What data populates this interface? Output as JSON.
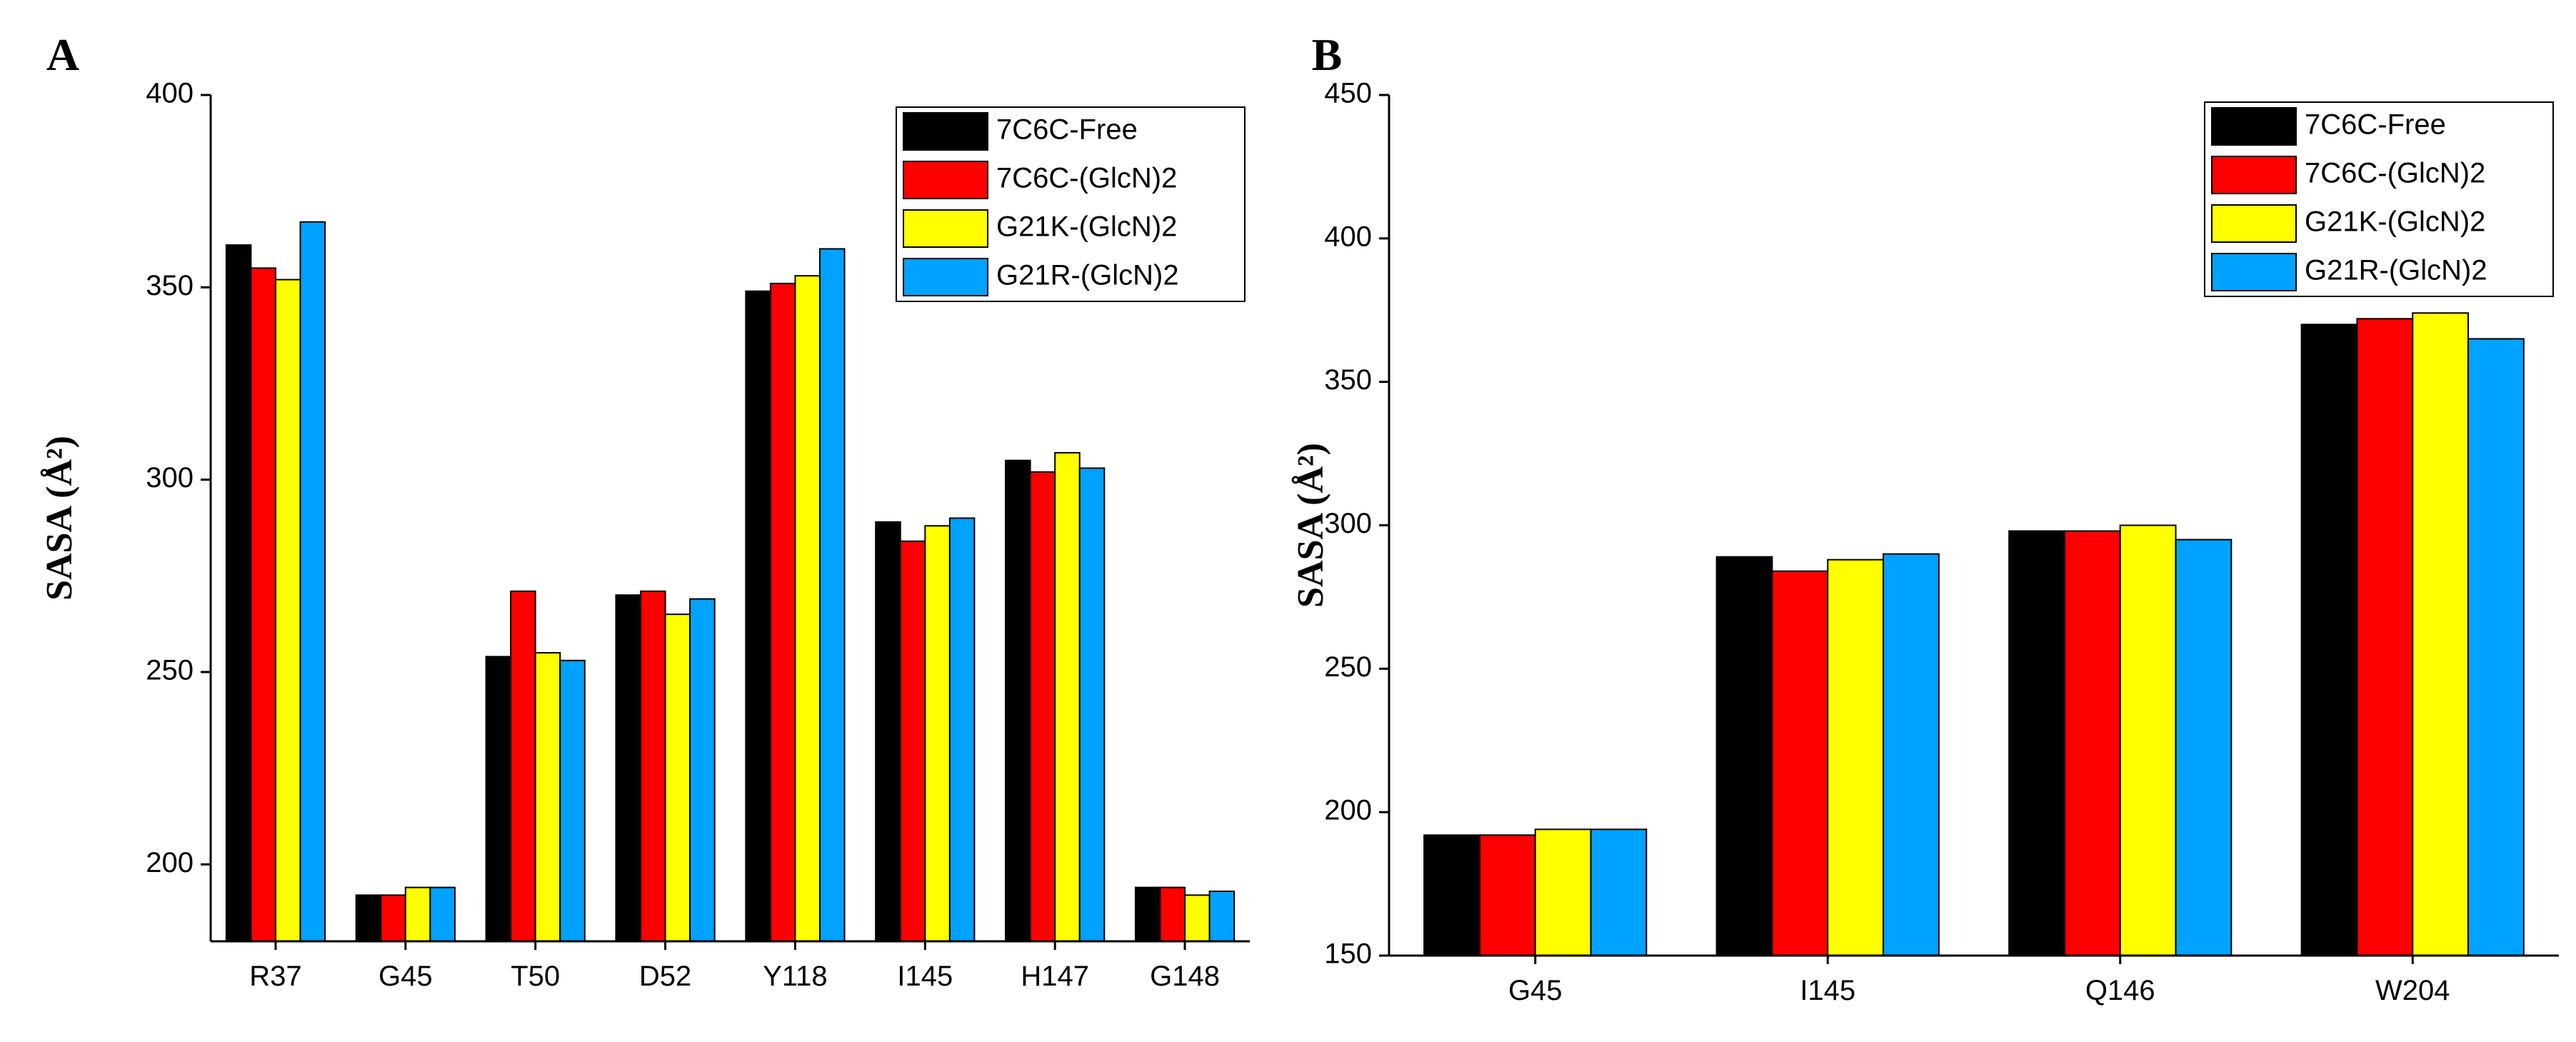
{
  "chart_data": [
    {
      "panel_label": "A",
      "type": "bar",
      "ylabel": "SASA (Å²)",
      "xlabel": "",
      "ylim": [
        180,
        400
      ],
      "yticks": [
        200,
        250,
        300,
        350,
        400
      ],
      "categories": [
        "R37",
        "G45",
        "T50",
        "D52",
        "Y118",
        "I145",
        "H147",
        "G148"
      ],
      "legend_position": "top-right",
      "series": [
        {
          "name": "7C6C-Free",
          "color": "#000000",
          "values": [
            361,
            192,
            254,
            270,
            349,
            289,
            305,
            194
          ]
        },
        {
          "name": "7C6C-(GlcN)2",
          "color": "#ff0000",
          "values": [
            355,
            192,
            271,
            271,
            351,
            284,
            302,
            194
          ]
        },
        {
          "name": "G21K-(GlcN)2",
          "color": "#ffff00",
          "values": [
            352,
            194,
            255,
            265,
            353,
            288,
            307,
            192
          ]
        },
        {
          "name": "G21R-(GlcN)2",
          "color": "#00a2ff",
          "values": [
            367,
            194,
            253,
            269,
            360,
            290,
            303,
            193
          ]
        }
      ]
    },
    {
      "panel_label": "B",
      "type": "bar",
      "ylabel": "SASA (Å²)",
      "xlabel": "",
      "ylim": [
        150,
        450
      ],
      "yticks": [
        150,
        200,
        250,
        300,
        350,
        400,
        450
      ],
      "categories": [
        "G45",
        "I145",
        "Q146",
        "W204"
      ],
      "legend_position": "top-right",
      "series": [
        {
          "name": "7C6C-Free",
          "color": "#000000",
          "values": [
            192,
            289,
            298,
            370
          ]
        },
        {
          "name": "7C6C-(GlcN)2",
          "color": "#ff0000",
          "values": [
            192,
            284,
            298,
            372
          ]
        },
        {
          "name": "G21K-(GlcN)2",
          "color": "#ffff00",
          "values": [
            194,
            288,
            300,
            374
          ]
        },
        {
          "name": "G21R-(GlcN)2",
          "color": "#00a2ff",
          "values": [
            194,
            290,
            295,
            365
          ]
        }
      ]
    }
  ]
}
